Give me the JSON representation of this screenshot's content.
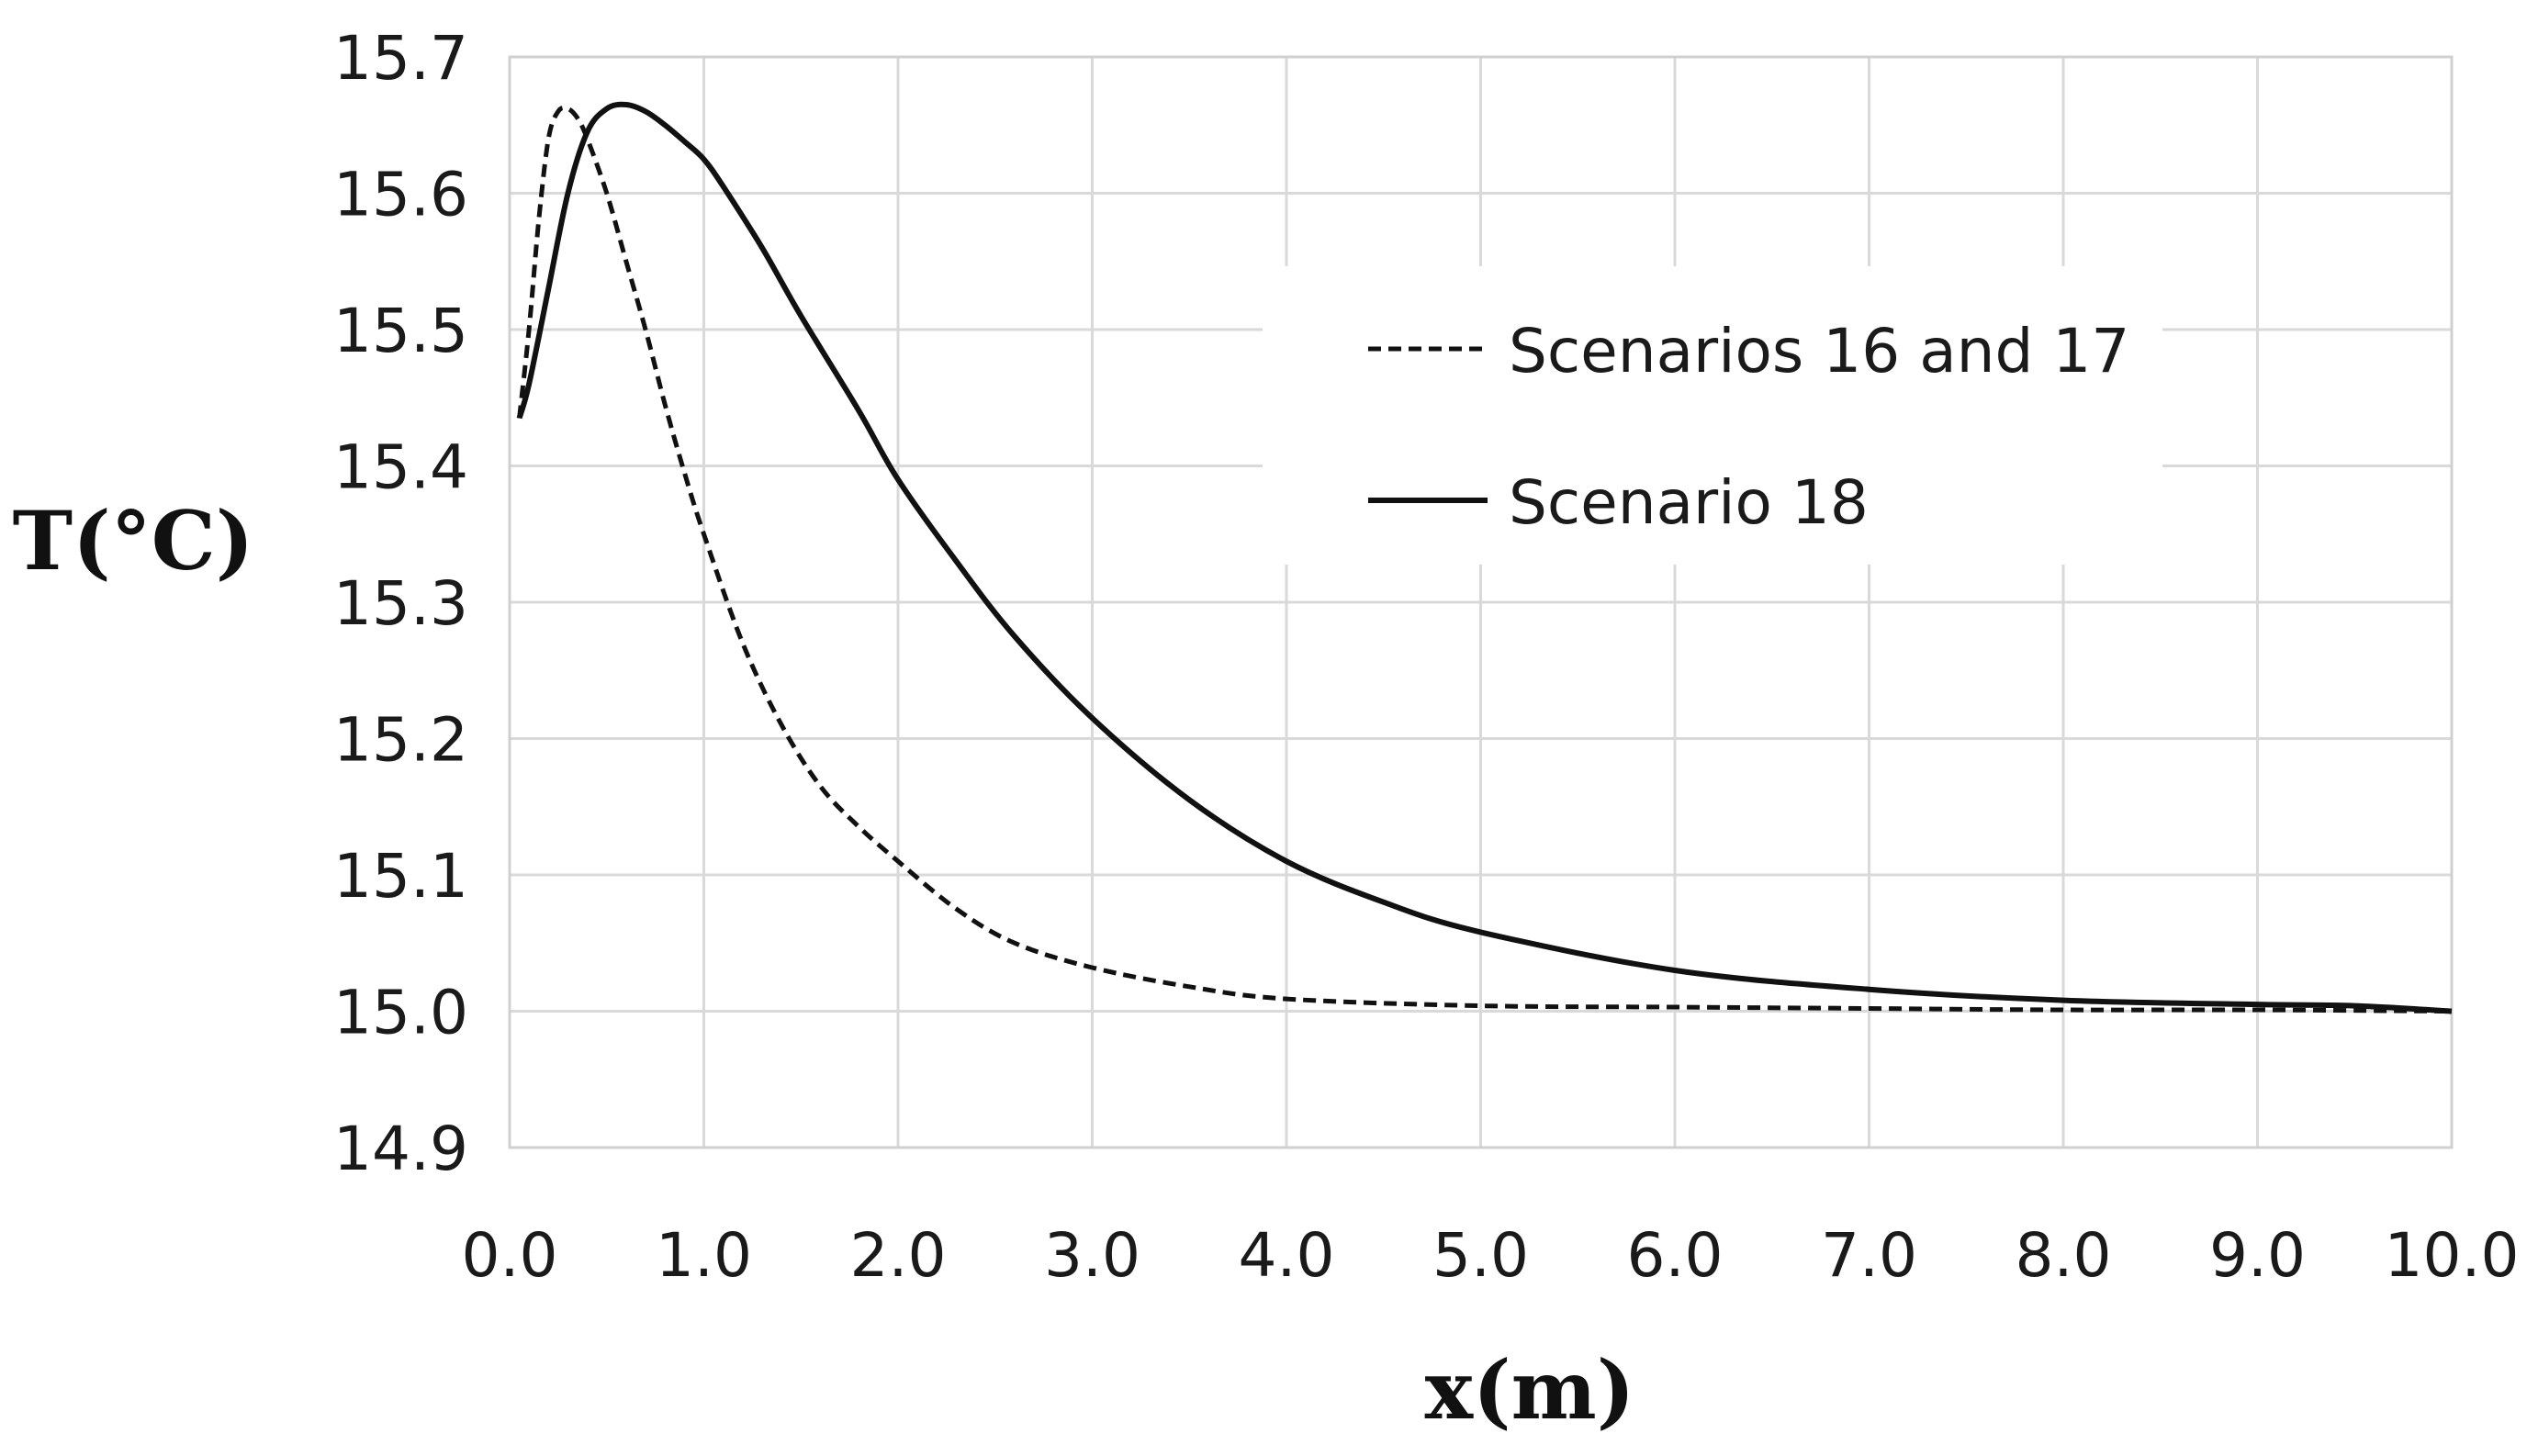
{
  "chart_data": {
    "type": "line",
    "title": "",
    "xlabel": "x(m)",
    "ylabel": "T(°C)",
    "xlim": [
      0,
      10
    ],
    "ylim": [
      14.9,
      15.7
    ],
    "grid": true,
    "legend_position": "upper-right",
    "x_tick_labels": [
      "0.0",
      "1.0",
      "2.0",
      "3.0",
      "4.0",
      "5.0",
      "6.0",
      "7.0",
      "8.0",
      "9.0",
      "10.0"
    ],
    "y_tick_labels": [
      "15.7",
      "15.6",
      "15.5",
      "15.4",
      "15.3",
      "15.2",
      "15.1",
      "15.0",
      "14.9"
    ],
    "series": [
      {
        "name": "Scenarios 16 and 17",
        "style": "dashed",
        "color": "#111111",
        "x": [
          0.05,
          0.1,
          0.15,
          0.2,
          0.25,
          0.3,
          0.35,
          0.4,
          0.5,
          0.6,
          0.7,
          0.8,
          0.9,
          1.0,
          1.2,
          1.4,
          1.6,
          1.8,
          2.0,
          2.3,
          2.6,
          3.0,
          3.5,
          4.0,
          5.0,
          6.0,
          7.0,
          8.0,
          9.0,
          10.0
        ],
        "values": [
          15.435,
          15.5,
          15.58,
          15.64,
          15.66,
          15.662,
          15.655,
          15.64,
          15.6,
          15.55,
          15.5,
          15.445,
          15.395,
          15.35,
          15.27,
          15.21,
          15.165,
          15.135,
          15.11,
          15.075,
          15.05,
          15.032,
          15.018,
          15.009,
          15.004,
          15.003,
          15.002,
          15.001,
          15.001,
          15.0
        ]
      },
      {
        "name": "Scenario 18",
        "style": "solid",
        "color": "#111111",
        "x": [
          0.05,
          0.1,
          0.2,
          0.3,
          0.4,
          0.5,
          0.6,
          0.7,
          0.8,
          0.9,
          1.0,
          1.1,
          1.3,
          1.5,
          1.8,
          2.0,
          2.3,
          2.6,
          3.0,
          3.5,
          4.0,
          4.5,
          5.0,
          6.0,
          7.0,
          8.0,
          9.0,
          9.5,
          10.0
        ],
        "values": [
          15.435,
          15.46,
          15.53,
          15.6,
          15.645,
          15.662,
          15.665,
          15.66,
          15.65,
          15.638,
          15.625,
          15.605,
          15.56,
          15.51,
          15.44,
          15.39,
          15.33,
          15.275,
          15.215,
          15.155,
          15.11,
          15.08,
          15.058,
          15.03,
          15.016,
          15.008,
          15.005,
          15.004,
          15.0
        ]
      }
    ]
  }
}
